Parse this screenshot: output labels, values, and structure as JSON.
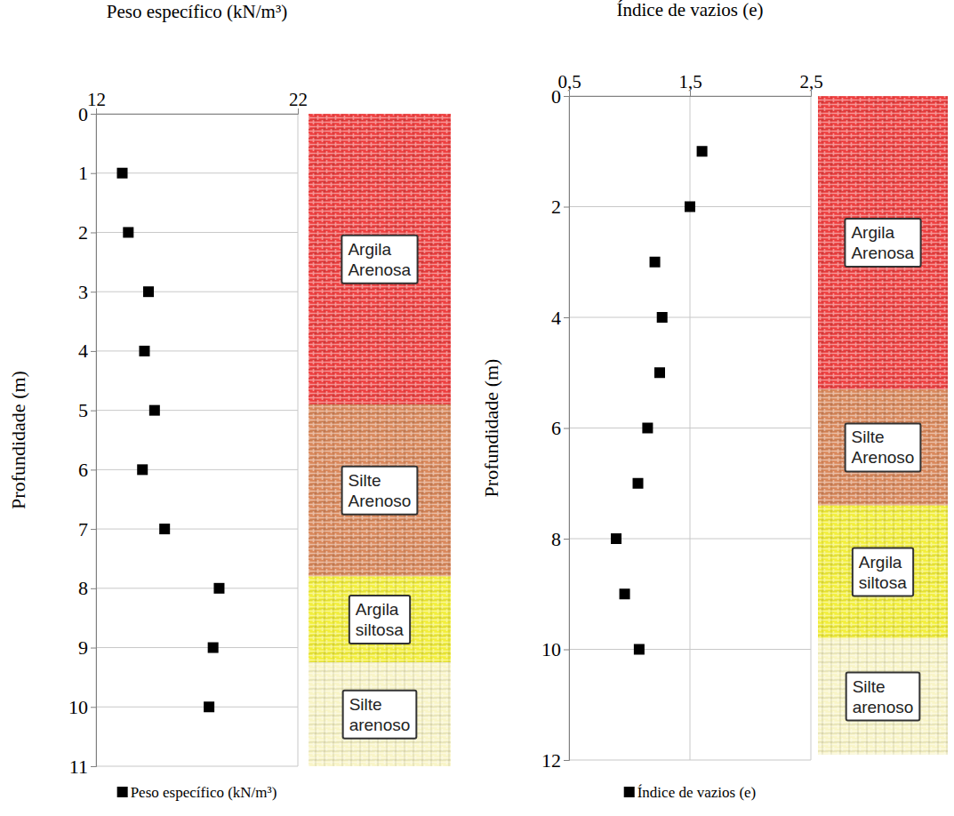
{
  "chart_data": [
    {
      "type": "scatter",
      "x_label": "Peso específico (kN/m³)",
      "y_label": "Profundidade (m)",
      "xlim": [
        12,
        22
      ],
      "xticks": [
        12,
        22
      ],
      "ylim": [
        0,
        11
      ],
      "yticks": [
        0,
        1,
        2,
        3,
        4,
        5,
        6,
        7,
        8,
        9,
        10,
        11
      ],
      "grid": true,
      "legend": "bottom",
      "series": [
        {
          "name": "Peso específico (kN/m³)",
          "color": "#000000",
          "marker": "square",
          "x": [
            13.3,
            13.6,
            14.6,
            14.4,
            14.9,
            14.3,
            15.4,
            18.1,
            17.8,
            17.6
          ],
          "values": [
            1,
            2,
            3,
            4,
            5,
            6,
            7,
            8,
            9,
            10
          ]
        }
      ],
      "layers": [
        {
          "name": "Argila Arenosa",
          "top": 0,
          "bottom": 4.9,
          "color": "#ee3e3e"
        },
        {
          "name": "Silte Arenoso",
          "top": 4.9,
          "bottom": 7.8,
          "color": "#d9875a"
        },
        {
          "name": "Argila siltosa",
          "top": 7.8,
          "bottom": 9.25,
          "color": "#f2ee3a"
        },
        {
          "name": "Silte arenoso",
          "top": 9.25,
          "bottom": 11,
          "color": "#f8f4c6"
        }
      ]
    },
    {
      "type": "scatter",
      "x_label": "Índice de vazios (e)",
      "y_label": "Profundidade (m)",
      "xlim": [
        0.5,
        2.5
      ],
      "xticks": [
        {
          "value": 0.5,
          "label": "0,5"
        },
        {
          "value": 1.5,
          "label": "1,5"
        },
        {
          "value": 2.5,
          "label": "2,5"
        }
      ],
      "ylim": [
        0,
        12
      ],
      "yticks": [
        0,
        2,
        4,
        6,
        8,
        10,
        12
      ],
      "grid": true,
      "legend": "bottom",
      "series": [
        {
          "name": "Índice de vazios (e)",
          "color": "#000000",
          "marker": "square",
          "x": [
            1.6,
            1.5,
            1.21,
            1.27,
            1.25,
            1.15,
            1.07,
            0.89,
            0.96,
            1.08
          ],
          "values": [
            1,
            2,
            3,
            4,
            5,
            6,
            7,
            8,
            9,
            10
          ]
        }
      ],
      "layers": [
        {
          "name": "Argila Arenosa",
          "top": 0,
          "bottom": 5.3,
          "color": "#ee3e3e"
        },
        {
          "name": "Silte Arenoso",
          "top": 5.3,
          "bottom": 7.4,
          "color": "#d9875a"
        },
        {
          "name": "Argila siltosa",
          "top": 7.4,
          "bottom": 9.8,
          "color": "#f2ee3a"
        },
        {
          "name": "Silte arenoso",
          "top": 9.8,
          "bottom": 11.9,
          "color": "#f8f4c6"
        }
      ]
    }
  ]
}
